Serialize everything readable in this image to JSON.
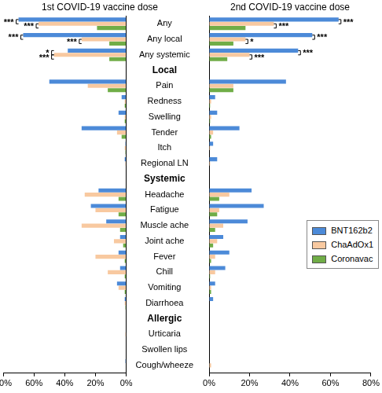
{
  "chart_data": [
    {
      "type": "bar",
      "orientation": "horizontal",
      "title": "1st COVID-19 vaccine dose",
      "categories": [
        "Any",
        "Any local",
        "Any systemic",
        "Local",
        "Pain",
        "Redness",
        "Swelling",
        "Tender",
        "Itch",
        "Regional LN",
        "Systemic",
        "Headache",
        "Fatigue",
        "Muscle ache",
        "Joint ache",
        "Fever",
        "Chill",
        "Vomiting",
        "Diarrhoea",
        "Allergic",
        "Urticaria",
        "Swollen lips",
        "Cough/wheeze"
      ],
      "series": [
        {
          "name": "BNT162b2",
          "color": "#4c8ad8",
          "values": [
            70,
            67,
            38,
            null,
            50,
            3,
            5,
            29,
            0.5,
            1,
            null,
            18,
            23,
            13,
            4,
            5,
            4,
            6,
            1,
            null,
            0,
            0,
            0.5
          ]
        },
        {
          "name": "ChaAdOx1",
          "color": "#f8c9a0",
          "values": [
            57,
            29,
            47,
            null,
            25,
            1,
            1,
            6,
            1,
            0.5,
            null,
            27,
            20,
            29,
            8,
            20,
            12,
            5,
            1,
            null,
            0.5,
            0,
            0
          ]
        },
        {
          "name": "Coronavac",
          "color": "#70ad47",
          "values": [
            19,
            11,
            11,
            null,
            12,
            1,
            1,
            3,
            0.5,
            0,
            null,
            5,
            5,
            4,
            2,
            1,
            1,
            1,
            0.5,
            null,
            0,
            0,
            0
          ]
        }
      ],
      "xlim": [
        80,
        0
      ],
      "xticks": [
        {
          "value": 0,
          "label": "0%"
        },
        {
          "value": 20,
          "label": "20%"
        },
        {
          "value": 40,
          "label": "40%"
        },
        {
          "value": 60,
          "label": "60%"
        },
        {
          "value": 80,
          "label": "80%"
        }
      ],
      "grid": false,
      "annotations": [
        {
          "category": "Any",
          "series": [
            "BNT162b2",
            "ChaAdOx1"
          ],
          "label": "***"
        },
        {
          "category": "Any",
          "series": [
            "ChaAdOx1",
            "Coronavac"
          ],
          "label": "***"
        },
        {
          "category": "Any local",
          "series": [
            "BNT162b2",
            "ChaAdOx1"
          ],
          "label": "***"
        },
        {
          "category": "Any local",
          "series": [
            "ChaAdOx1",
            "Coronavac"
          ],
          "label": "***"
        },
        {
          "category": "Any systemic",
          "series": [
            "BNT162b2",
            "ChaAdOx1"
          ],
          "label": "*"
        },
        {
          "category": "Any systemic",
          "series": [
            "ChaAdOx1",
            "Coronavac"
          ],
          "label": "***"
        }
      ]
    },
    {
      "type": "bar",
      "orientation": "horizontal",
      "title": "2nd COVID-19 vaccine dose",
      "categories": [
        "Any",
        "Any local",
        "Any systemic",
        "Local",
        "Pain",
        "Redness",
        "Swelling",
        "Tender",
        "Itch",
        "Regional LN",
        "Systemic",
        "Headache",
        "Fatigue",
        "Muscle ache",
        "Joint ache",
        "Fever",
        "Chill",
        "Vomiting",
        "Diarrhoea",
        "Allergic",
        "Urticaria",
        "Swollen lips",
        "Cough/wheeze"
      ],
      "series": [
        {
          "name": "BNT162b2",
          "color": "#4c8ad8",
          "values": [
            64,
            51,
            44,
            null,
            38,
            3,
            4,
            15,
            2,
            4,
            null,
            21,
            27,
            19,
            7,
            10,
            8,
            3,
            2,
            null,
            0,
            0,
            0
          ]
        },
        {
          "name": "ChaAdOx1",
          "color": "#f8c9a0",
          "values": [
            32,
            18,
            20,
            null,
            12,
            1,
            1,
            2,
            0.5,
            0.5,
            null,
            10,
            5,
            7,
            4,
            3,
            3,
            1,
            0,
            null,
            0,
            0,
            1
          ]
        },
        {
          "name": "Coronavac",
          "color": "#70ad47",
          "values": [
            18,
            12,
            9,
            null,
            12,
            0.5,
            0.5,
            1,
            0,
            0,
            null,
            5,
            4,
            3,
            2,
            1,
            0.5,
            1,
            0,
            null,
            0,
            0,
            0
          ]
        }
      ],
      "xlim": [
        0,
        80
      ],
      "xticks": [
        {
          "value": 0,
          "label": "0%"
        },
        {
          "value": 20,
          "label": "20%"
        },
        {
          "value": 40,
          "label": "40%"
        },
        {
          "value": 60,
          "label": "60%"
        },
        {
          "value": 80,
          "label": "80%"
        }
      ],
      "grid": false,
      "tick_labels": "x",
      "legend": "right",
      "annotations": [
        {
          "category": "Any",
          "series": [
            "BNT162b2",
            "ChaAdOx1"
          ],
          "label": "***"
        },
        {
          "category": "Any",
          "series": [
            "ChaAdOx1",
            "Coronavac"
          ],
          "label": "***"
        },
        {
          "category": "Any local",
          "series": [
            "BNT162b2",
            "ChaAdOx1"
          ],
          "label": "***"
        },
        {
          "category": "Any local",
          "series": [
            "ChaAdOx1",
            "Coronavac"
          ],
          "label": "*"
        },
        {
          "category": "Any systemic",
          "series": [
            "BNT162b2",
            "ChaAdOx1"
          ],
          "label": "***"
        },
        {
          "category": "Any systemic",
          "series": [
            "ChaAdOx1",
            "Coronavac"
          ],
          "label": "***"
        }
      ]
    }
  ]
}
